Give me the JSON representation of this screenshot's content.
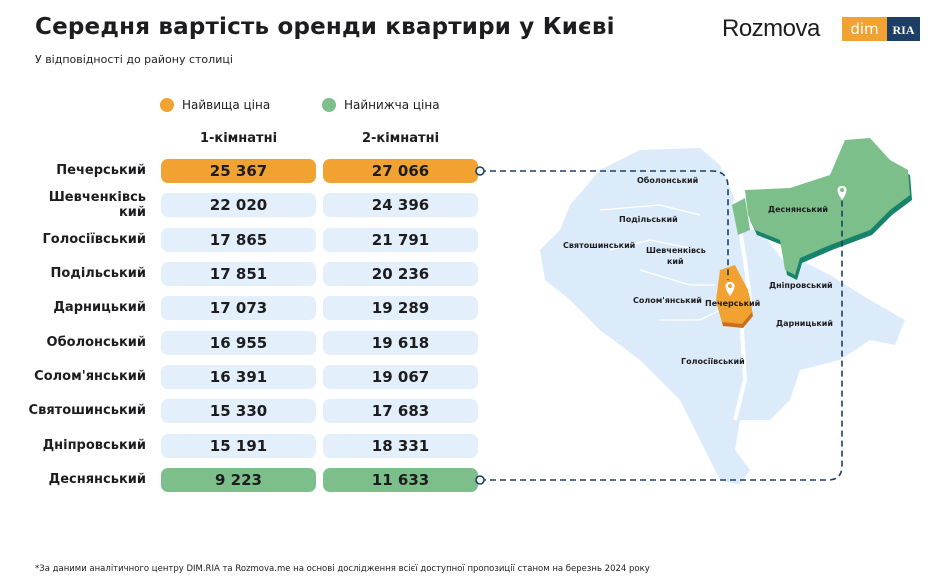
{
  "header": {
    "title": "Середня вартість оренди квартири у Києві",
    "subtitle": "У відповідності до району столиці"
  },
  "logos": {
    "rozmova": "Rozmova",
    "dim": "dim",
    "ria": "RIA"
  },
  "legend": {
    "highest": "Найвища ціна",
    "lowest": "Найнижча ціна"
  },
  "colors": {
    "highest": "#f2a231",
    "lowest": "#7dbf8b",
    "default": "#e3effb",
    "map": "#dcebf9",
    "line": "#1d3f66"
  },
  "chart_data": {
    "type": "table",
    "title": "Середня вартість оренди квартири у Києві",
    "columns": [
      "1-кімнатні",
      "2-кімнатні"
    ],
    "rows": [
      {
        "district": "Печерський",
        "values": [
          "25 367",
          "27 066"
        ],
        "highlight": "highest"
      },
      {
        "district": "Шевченківський",
        "display": "Шевченківсь кий",
        "values": [
          "22 020",
          "24 396"
        ],
        "highlight": "none"
      },
      {
        "district": "Голосіївський",
        "values": [
          "17 865",
          "21 791"
        ],
        "highlight": "none"
      },
      {
        "district": "Подільський",
        "values": [
          "17 851",
          "20 236"
        ],
        "highlight": "none"
      },
      {
        "district": "Дарницький",
        "values": [
          "17 073",
          "19 289"
        ],
        "highlight": "none"
      },
      {
        "district": "Оболонський",
        "values": [
          "16 955",
          "19 618"
        ],
        "highlight": "none"
      },
      {
        "district": "Солом'янський",
        "values": [
          "16 391",
          "19 067"
        ],
        "highlight": "none"
      },
      {
        "district": "Святошинський",
        "values": [
          "15 330",
          "17 683"
        ],
        "highlight": "none"
      },
      {
        "district": "Дніпровський",
        "values": [
          "15 191",
          "18 331"
        ],
        "highlight": "none"
      },
      {
        "district": "Деснянський",
        "values": [
          "9 223",
          "11 633"
        ],
        "highlight": "lowest"
      }
    ]
  },
  "map": {
    "labels": [
      "Оболонський",
      "Подільський",
      "Святошинський",
      "Шевченківсь",
      "кий",
      "Солом'янський",
      "Печерський",
      "Деснянський",
      "Дніпровський",
      "Дарницький",
      "Голосіївський"
    ]
  },
  "footnote": "*За даними аналітичного центру DIM.RIA та Rozmova.me на основі дослідження всієї доступної пропозиції станом на березнь 2024 року"
}
